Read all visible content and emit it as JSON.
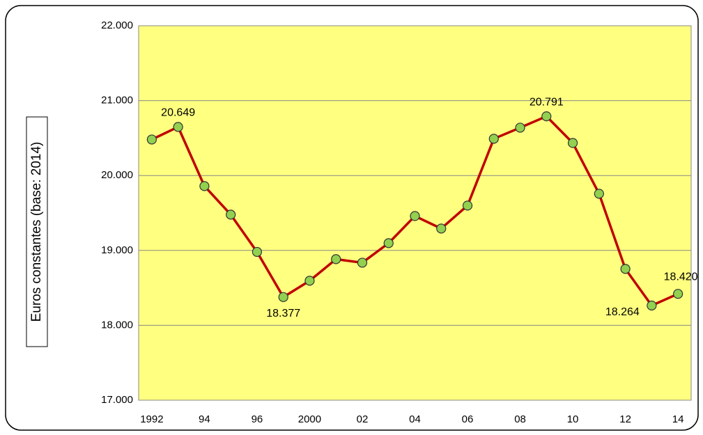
{
  "chart_data": {
    "type": "line",
    "y_label": "Euros constantes (base: 2014)",
    "categories": [
      "1992",
      null,
      "94",
      null,
      "96",
      null,
      "2000",
      null,
      "02",
      null,
      "04",
      null,
      "06",
      null,
      "08",
      null,
      "10",
      null,
      "12",
      null,
      "14"
    ],
    "series": [
      {
        "name": null,
        "color": "#c00000",
        "marker_color": "#92d050",
        "values": [
          20481,
          20649,
          19859,
          19478,
          18980,
          18377,
          18595,
          18883,
          18836,
          19097,
          19459,
          19292,
          19599,
          20491,
          20639,
          20791,
          20435,
          19757,
          18753,
          18264,
          18420
        ],
        "value_labels": [
          null,
          "20.649",
          null,
          null,
          null,
          "18.377",
          null,
          null,
          null,
          null,
          null,
          null,
          null,
          null,
          null,
          "20.791",
          null,
          null,
          null,
          "18.264",
          "18.420"
        ]
      }
    ],
    "ylim": [
      17000,
      22000
    ],
    "yticks": [
      {
        "value": 17000,
        "label": "17.000"
      },
      {
        "value": 18000,
        "label": "18.000"
      },
      {
        "value": 19000,
        "label": "19.000"
      },
      {
        "value": 20000,
        "label": "20.000"
      },
      {
        "value": 21000,
        "label": "21.000"
      },
      {
        "value": 22000,
        "label": "22.000"
      }
    ],
    "grid": true,
    "plot_background": "#ffff80"
  }
}
